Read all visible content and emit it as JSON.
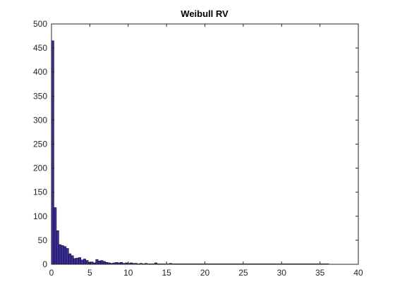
{
  "chart_data": {
    "type": "bar",
    "title": "Weibull RV",
    "xlabel": "",
    "ylabel": "",
    "xlim": [
      0,
      40
    ],
    "ylim": [
      0,
      500
    ],
    "xticks": [
      0,
      5,
      10,
      15,
      20,
      25,
      30,
      35,
      40
    ],
    "yticks": [
      0,
      50,
      100,
      150,
      200,
      250,
      300,
      350,
      400,
      450,
      500
    ],
    "bin_width": 0.32,
    "bin_start": 0,
    "counts": [
      465,
      118,
      70,
      41,
      39,
      37,
      33,
      22,
      18,
      12,
      13,
      14,
      9,
      11,
      8,
      4,
      5,
      3,
      10,
      7,
      8,
      6,
      4,
      3,
      2,
      3,
      4,
      3,
      4,
      2,
      3,
      2,
      3,
      2,
      2,
      1,
      2,
      1,
      2,
      1,
      1,
      1,
      3,
      1,
      1,
      1,
      1,
      1,
      2,
      1,
      1,
      1,
      1,
      1,
      1,
      1,
      1,
      1,
      1,
      1,
      1,
      1,
      1,
      1,
      1,
      1,
      1,
      1,
      1,
      1,
      1,
      1,
      1,
      1,
      1,
      1,
      1,
      1,
      1,
      1,
      1,
      1,
      1,
      1,
      1,
      1,
      1,
      1,
      1,
      1,
      1,
      1,
      1,
      1,
      1,
      1,
      1,
      1,
      1,
      1,
      1,
      1,
      1,
      1,
      1,
      1,
      1,
      1,
      1,
      1,
      1,
      1,
      1
    ],
    "grid": false,
    "legend": "none",
    "bar_color": "#3b2f9e",
    "bar_edge_color": "#000000"
  }
}
